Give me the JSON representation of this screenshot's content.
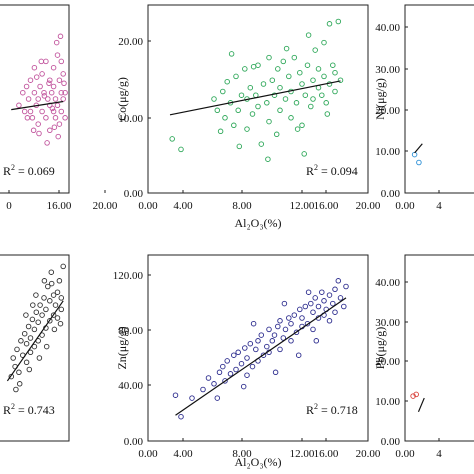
{
  "chart_data": [
    {
      "type": "scatter",
      "xlabel": "",
      "ylabel": "",
      "xlim": [
        0,
        20
      ],
      "ylim": [
        0,
        30
      ],
      "x_ticks": [
        "0",
        "16.00",
        "20.00"
      ],
      "color": "#c2569e",
      "r2": "R² = 0.069",
      "r2_base": "R",
      "r2_sup": "2",
      "r2_rest": " = 0.069",
      "trend": [
        [
          5,
          13.3
        ],
        [
          18.5,
          14.6
        ]
      ],
      "points": [
        [
          7,
          14
        ],
        [
          8,
          16
        ],
        [
          8.5,
          13
        ],
        [
          9,
          17
        ],
        [
          9.5,
          15
        ],
        [
          10,
          13
        ],
        [
          10,
          18
        ],
        [
          10.5,
          12
        ],
        [
          11,
          16
        ],
        [
          11,
          20
        ],
        [
          11.5,
          14
        ],
        [
          12,
          15
        ],
        [
          12,
          11
        ],
        [
          12.5,
          17
        ],
        [
          13,
          13
        ],
        [
          13,
          19
        ],
        [
          13.5,
          16
        ],
        [
          14,
          12
        ],
        [
          14,
          21
        ],
        [
          14.5,
          15
        ],
        [
          15,
          14
        ],
        [
          15,
          18
        ],
        [
          15,
          10
        ],
        [
          15.5,
          16
        ],
        [
          16,
          13
        ],
        [
          16,
          20
        ],
        [
          16,
          17
        ],
        [
          16.5,
          12
        ],
        [
          16.5,
          15
        ],
        [
          17,
          22
        ],
        [
          17,
          14
        ],
        [
          17.5,
          18
        ],
        [
          17.5,
          11
        ],
        [
          18,
          16
        ],
        [
          18,
          13
        ],
        [
          18,
          21
        ],
        [
          18.5,
          15
        ],
        [
          18.5,
          19
        ],
        [
          19,
          12
        ],
        [
          19,
          16
        ],
        [
          17.2,
          9
        ],
        [
          14.3,
          8
        ],
        [
          12.8,
          21
        ],
        [
          10.8,
          10
        ],
        [
          9.2,
          12
        ],
        [
          16.8,
          24
        ],
        [
          17.8,
          25
        ],
        [
          13.6,
          15.5
        ],
        [
          15.7,
          13.5
        ],
        [
          14.8,
          17.5
        ],
        [
          11.6,
          18.5
        ],
        [
          12.2,
          9.5
        ],
        [
          18.7,
          17.5
        ],
        [
          16.2,
          10.5
        ]
      ]
    },
    {
      "type": "scatter",
      "xlabel": "Al₂O₃(%)",
      "ylabel": "Co(μg/g)",
      "xlim": [
        0,
        20
      ],
      "ylim": [
        0,
        25
      ],
      "x_ticks": [
        "0.00",
        "4.00",
        "8.00",
        "12.00",
        "16.00",
        "20.00"
      ],
      "y_ticks": [
        "0.00",
        "10.00",
        "20.00"
      ],
      "color": "#2fa85a",
      "r2": "R² = 0.094",
      "r2_base": "R",
      "r2_sup": "2",
      "r2_rest": " = 0.094",
      "trend": [
        [
          2,
          10.4
        ],
        [
          17.5,
          14.9
        ]
      ],
      "points": [
        [
          2.2,
          7.2
        ],
        [
          3,
          5.8
        ],
        [
          6,
          12.5
        ],
        [
          6.3,
          11
        ],
        [
          6.8,
          13.5
        ],
        [
          7,
          10
        ],
        [
          7.2,
          14.8
        ],
        [
          7.5,
          12
        ],
        [
          7.8,
          9
        ],
        [
          8,
          15.5
        ],
        [
          8.2,
          11
        ],
        [
          8.5,
          13
        ],
        [
          8.8,
          16.5
        ],
        [
          9,
          12.5
        ],
        [
          9,
          8.5
        ],
        [
          9.3,
          14
        ],
        [
          9.5,
          10.5
        ],
        [
          9.8,
          13
        ],
        [
          10,
          17
        ],
        [
          10,
          11.5
        ],
        [
          10.3,
          6.5
        ],
        [
          10.5,
          14.5
        ],
        [
          10.8,
          12
        ],
        [
          11,
          18
        ],
        [
          11,
          9.5
        ],
        [
          11.3,
          15
        ],
        [
          11.5,
          13
        ],
        [
          11.8,
          16.5
        ],
        [
          12,
          11
        ],
        [
          12,
          14
        ],
        [
          12.3,
          17.5
        ],
        [
          12.5,
          12.5
        ],
        [
          12.8,
          15.5
        ],
        [
          13,
          10
        ],
        [
          13,
          13.5
        ],
        [
          13.3,
          18
        ],
        [
          13.5,
          12
        ],
        [
          13.8,
          16
        ],
        [
          14,
          14.5
        ],
        [
          14,
          9
        ],
        [
          14.3,
          13
        ],
        [
          14.5,
          17
        ],
        [
          14.8,
          11.5
        ],
        [
          15,
          15
        ],
        [
          15,
          12.5
        ],
        [
          15.2,
          19
        ],
        [
          15.5,
          14
        ],
        [
          15.5,
          16.5
        ],
        [
          15.8,
          13
        ],
        [
          16,
          15.5
        ],
        [
          16,
          20
        ],
        [
          16.2,
          12
        ],
        [
          16.5,
          14.5
        ],
        [
          16.5,
          22.5
        ],
        [
          16.8,
          17
        ],
        [
          17,
          13.5
        ],
        [
          17,
          16
        ],
        [
          17.3,
          22.8
        ],
        [
          17.5,
          15
        ],
        [
          14.2,
          5.2
        ],
        [
          8.3,
          6.2
        ],
        [
          11.7,
          7.8
        ],
        [
          13.6,
          8.5
        ],
        [
          9.6,
          16.8
        ],
        [
          6.6,
          8.2
        ],
        [
          12.6,
          19.2
        ],
        [
          14.6,
          21
        ],
        [
          16.3,
          10.5
        ],
        [
          10.9,
          4.5
        ],
        [
          7.6,
          18.5
        ]
      ]
    },
    {
      "type": "scatter",
      "xlabel": "",
      "ylabel": "Ni(μg/g)",
      "xlim": [
        0,
        20
      ],
      "ylim": [
        0,
        45
      ],
      "x_ticks": [
        "0.00",
        "4"
      ],
      "y_ticks": [
        "0.00",
        "10.00",
        "20.00",
        "30.00",
        "40.00"
      ],
      "color": "#2b8fd6",
      "r2": "",
      "r2_base": "",
      "r2_sup": "",
      "r2_rest": "",
      "trend": [
        [
          2.5,
          9.6
        ],
        [
          4.5,
          11.8
        ]
      ],
      "points": [
        [
          2.5,
          9.2
        ],
        [
          3.6,
          7.3
        ]
      ]
    },
    {
      "type": "scatter",
      "xlabel": "",
      "ylabel": "",
      "xlim": [
        0,
        20
      ],
      "ylim": [
        0,
        130
      ],
      "x_ticks": [],
      "color": "#333333",
      "r2": "R² = 0.743",
      "r2_base": "R",
      "r2_sup": "2",
      "r2_rest": " = 0.743",
      "trend": [
        [
          4,
          42
        ],
        [
          18.5,
          98
        ]
      ],
      "points": [
        [
          5,
          45
        ],
        [
          5.5,
          58
        ],
        [
          6,
          52
        ],
        [
          6.5,
          64
        ],
        [
          7,
          48
        ],
        [
          7.5,
          70
        ],
        [
          8,
          60
        ],
        [
          8.5,
          75
        ],
        [
          9,
          55
        ],
        [
          9,
          68
        ],
        [
          9.5,
          80
        ],
        [
          10,
          62
        ],
        [
          10,
          72
        ],
        [
          10.5,
          85
        ],
        [
          11,
          66
        ],
        [
          11,
          78
        ],
        [
          11.5,
          90
        ],
        [
          12,
          70
        ],
        [
          12,
          83
        ],
        [
          12.5,
          95
        ],
        [
          13,
          74
        ],
        [
          13,
          88
        ],
        [
          13.5,
          100
        ],
        [
          14,
          79
        ],
        [
          14,
          92
        ],
        [
          14.5,
          108
        ],
        [
          15,
          84
        ],
        [
          15,
          98
        ],
        [
          15.5,
          110
        ],
        [
          16,
          88
        ],
        [
          16,
          102
        ],
        [
          16.5,
          95
        ],
        [
          17,
          104
        ],
        [
          17,
          86
        ],
        [
          17.5,
          112
        ],
        [
          18,
          100
        ],
        [
          18,
          92
        ],
        [
          18.5,
          122
        ],
        [
          7.2,
          40
        ],
        [
          9.7,
          50
        ],
        [
          12.3,
          58
        ],
        [
          14.2,
          66
        ],
        [
          16.2,
          78
        ],
        [
          11.4,
          102
        ],
        [
          13.6,
          112
        ],
        [
          15.4,
          118
        ],
        [
          8.8,
          88
        ],
        [
          10.6,
          95
        ],
        [
          17.8,
          82
        ],
        [
          6.2,
          36
        ]
      ]
    },
    {
      "type": "scatter",
      "xlabel": "Al₂O₃(%)",
      "ylabel": "Zn(μg/g)",
      "xlim": [
        0,
        20
      ],
      "ylim": [
        0,
        130
      ],
      "x_ticks": [
        "0.00",
        "4.00",
        "8.00",
        "12.00",
        "16.00",
        "20.00"
      ],
      "y_ticks": [
        "0.00",
        "40.00",
        "80.00",
        "120.00"
      ],
      "color": "#2e2e8f",
      "r2": "R² = 0.718",
      "r2_base": "R",
      "r2_sup": "2",
      "r2_rest": " = 0.718",
      "trend": [
        [
          2.5,
          18
        ],
        [
          18,
          100
        ]
      ],
      "points": [
        [
          2.5,
          32
        ],
        [
          3,
          17
        ],
        [
          4,
          30
        ],
        [
          5,
          36
        ],
        [
          5.5,
          44
        ],
        [
          6,
          40
        ],
        [
          6.5,
          48
        ],
        [
          6.8,
          52
        ],
        [
          7,
          42
        ],
        [
          7.2,
          56
        ],
        [
          7.5,
          47
        ],
        [
          7.8,
          60
        ],
        [
          8,
          50
        ],
        [
          8.2,
          62
        ],
        [
          8.5,
          54
        ],
        [
          8.8,
          65
        ],
        [
          9,
          46
        ],
        [
          9,
          58
        ],
        [
          9.3,
          68
        ],
        [
          9.5,
          52
        ],
        [
          9.8,
          64
        ],
        [
          10,
          70
        ],
        [
          10,
          56
        ],
        [
          10.3,
          74
        ],
        [
          10.5,
          60
        ],
        [
          10.8,
          66
        ],
        [
          11,
          78
        ],
        [
          11,
          62
        ],
        [
          11.3,
          70
        ],
        [
          11.5,
          74
        ],
        [
          11.8,
          80
        ],
        [
          12,
          64
        ],
        [
          12,
          84
        ],
        [
          12.3,
          72
        ],
        [
          12.5,
          78
        ],
        [
          12.8,
          86
        ],
        [
          13,
          70
        ],
        [
          13,
          82
        ],
        [
          13.3,
          88
        ],
        [
          13.5,
          76
        ],
        [
          13.8,
          92
        ],
        [
          14,
          80
        ],
        [
          14,
          86
        ],
        [
          14.3,
          94
        ],
        [
          14.5,
          82
        ],
        [
          14.8,
          96
        ],
        [
          15,
          78
        ],
        [
          15,
          90
        ],
        [
          15.2,
          100
        ],
        [
          15.5,
          86
        ],
        [
          15.5,
          94
        ],
        [
          15.8,
          104
        ],
        [
          16,
          88
        ],
        [
          16,
          98
        ],
        [
          16.2,
          92
        ],
        [
          16.5,
          102
        ],
        [
          16.5,
          84
        ],
        [
          16.8,
          96
        ],
        [
          17,
          106
        ],
        [
          17,
          90
        ],
        [
          17.3,
          112
        ],
        [
          17.5,
          100
        ],
        [
          17.8,
          94
        ],
        [
          18,
          108
        ],
        [
          6.3,
          30
        ],
        [
          8.7,
          38
        ],
        [
          11.6,
          48
        ],
        [
          13.7,
          60
        ],
        [
          15.3,
          70
        ],
        [
          9.6,
          82
        ],
        [
          12.4,
          96
        ],
        [
          14.6,
          104
        ]
      ]
    },
    {
      "type": "scatter",
      "xlabel": "",
      "ylabel": "Pb(μg/g)",
      "xlim": [
        0,
        20
      ],
      "ylim": [
        0,
        65
      ],
      "x_ticks": [
        "0.00",
        "4"
      ],
      "y_ticks": [
        "0.00",
        "10.00",
        "20.00",
        "30.00",
        "40.00",
        "50.00",
        "60.00"
      ],
      "color": "#d9403a",
      "r2": "",
      "r2_base": "",
      "r2_sup": "",
      "r2_rest": "",
      "trend": [
        [
          3.5,
          10.2
        ],
        [
          5,
          15
        ]
      ],
      "points": [
        [
          2.1,
          15.7
        ],
        [
          2.9,
          16.3
        ]
      ]
    }
  ]
}
